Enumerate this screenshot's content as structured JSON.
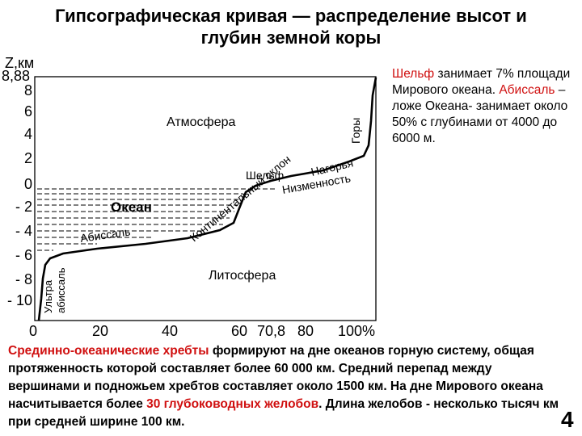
{
  "title": {
    "line1": "Гипсографическая кривая  — распределение высот и",
    "line2": "глубин земной коры"
  },
  "axis": {
    "y_unit": "Z,км",
    "top_value": "8,88",
    "y_ticks": [
      "8",
      "6",
      "4",
      "2",
      "0",
      "- 2",
      "- 4",
      "- 6",
      "- 8",
      "- 10"
    ],
    "x_ticks": [
      "0",
      "20",
      "40",
      "60",
      "70,8",
      "80",
      "100%"
    ]
  },
  "labels": {
    "atmosphere": "Атмосфера",
    "lithosphere": "Литосфера",
    "ocean": "Океан",
    "mountains": "Горы",
    "shelf": "Шельф",
    "upland": "Нагорья",
    "lowland": "Низменность",
    "abyssal": "Абиссаль",
    "continental_slope": "Континентальный склон",
    "ultra": "Ультра",
    "abyssal_lower": "абиссаль"
  },
  "right_text": {
    "shelf_word": "Шельф",
    "shelf_rest": " занимает 7% площади Мирового океана. ",
    "abyssal_word": "Абиссаль",
    "abyssal_rest": " – ложе Океана- занимает около  50% с глубинами от 4000 до 6000 м."
  },
  "bottom_text": {
    "ridges": "Срединно-океанические хребты",
    "part1": " формируют на дне океанов горную систему, общая протяженность которой составляет более 60 000 км. Средний перепад между вершинами и подножьем хребтов составляет около 1500 км. На дне Мирового океана насчитывается  более ",
    "trenches": "30 глубоководных желобов",
    "part2": ". Длина желобов  - несколько тысяч км при средней ширине 100 км."
  },
  "page_number": "4",
  "colors": {
    "accent_red": "#d01010"
  }
}
